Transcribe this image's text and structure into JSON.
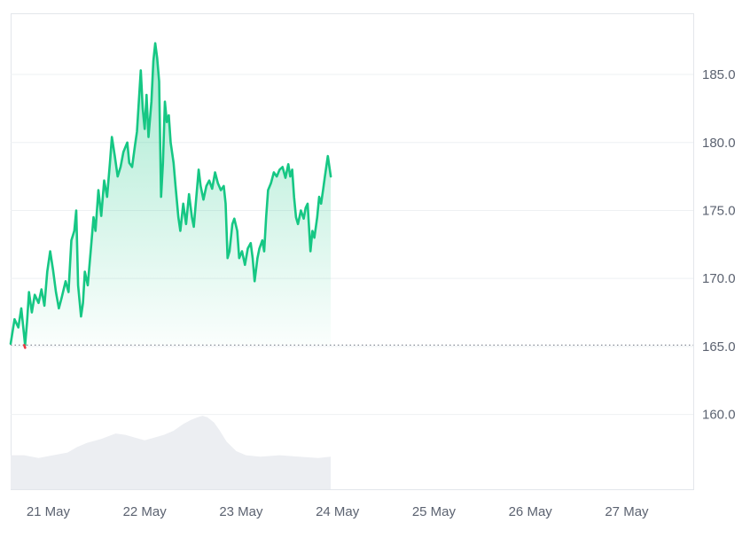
{
  "chart_data": {
    "type": "area",
    "baseline": 165.1,
    "ylim": [
      154.5,
      189.5
    ],
    "y_ticks": [
      {
        "value": 160,
        "label": "160.0"
      },
      {
        "value": 165,
        "label": "165.0"
      },
      {
        "value": 170,
        "label": "170.0"
      },
      {
        "value": 175,
        "label": "175.0"
      },
      {
        "value": 180,
        "label": "180.0"
      },
      {
        "value": 185,
        "label": "185.0"
      }
    ],
    "x_ticks": [
      {
        "day": 1,
        "label": "21 May"
      },
      {
        "day": 2,
        "label": "22 May"
      },
      {
        "day": 3,
        "label": "23 May"
      },
      {
        "day": 4,
        "label": "24 May"
      },
      {
        "day": 5,
        "label": "25 May"
      },
      {
        "day": 6,
        "label": "26 May"
      },
      {
        "day": 7,
        "label": "27 May"
      }
    ],
    "xlim": [
      0.61,
      7.69
    ],
    "grid": true,
    "colors": {
      "line": "#16c784",
      "below_baseline": "#ea3943",
      "volume": "#eceef2",
      "grid": "#eef0f3"
    },
    "price": [
      [
        0.61,
        165.2
      ],
      [
        0.65,
        167.0
      ],
      [
        0.69,
        166.4
      ],
      [
        0.72,
        167.8
      ],
      [
        0.74,
        166.5
      ],
      [
        0.76,
        165.1
      ],
      [
        0.78,
        166.8
      ],
      [
        0.8,
        169.0
      ],
      [
        0.83,
        167.5
      ],
      [
        0.86,
        168.8
      ],
      [
        0.9,
        168.2
      ],
      [
        0.93,
        169.2
      ],
      [
        0.96,
        168.0
      ],
      [
        0.99,
        170.5
      ],
      [
        1.02,
        172.0
      ],
      [
        1.05,
        170.6
      ],
      [
        1.08,
        169.0
      ],
      [
        1.11,
        167.8
      ],
      [
        1.14,
        168.6
      ],
      [
        1.18,
        169.8
      ],
      [
        1.21,
        169.0
      ],
      [
        1.24,
        172.8
      ],
      [
        1.27,
        173.5
      ],
      [
        1.29,
        175.0
      ],
      [
        1.31,
        169.5
      ],
      [
        1.34,
        167.2
      ],
      [
        1.36,
        168.2
      ],
      [
        1.38,
        170.5
      ],
      [
        1.41,
        169.5
      ],
      [
        1.44,
        172.0
      ],
      [
        1.47,
        174.5
      ],
      [
        1.49,
        173.5
      ],
      [
        1.52,
        176.5
      ],
      [
        1.55,
        174.6
      ],
      [
        1.58,
        177.2
      ],
      [
        1.61,
        176.0
      ],
      [
        1.64,
        178.5
      ],
      [
        1.66,
        180.4
      ],
      [
        1.69,
        179.0
      ],
      [
        1.72,
        177.5
      ],
      [
        1.75,
        178.2
      ],
      [
        1.78,
        179.3
      ],
      [
        1.82,
        180.0
      ],
      [
        1.84,
        178.5
      ],
      [
        1.87,
        178.2
      ],
      [
        1.9,
        179.8
      ],
      [
        1.92,
        180.8
      ],
      [
        1.94,
        183.0
      ],
      [
        1.96,
        185.3
      ],
      [
        1.98,
        182.5
      ],
      [
        2.0,
        181.0
      ],
      [
        2.02,
        183.5
      ],
      [
        2.04,
        180.4
      ],
      [
        2.07,
        183.0
      ],
      [
        2.09,
        186.0
      ],
      [
        2.11,
        187.3
      ],
      [
        2.13,
        186.2
      ],
      [
        2.15,
        184.5
      ],
      [
        2.17,
        176.0
      ],
      [
        2.19,
        178.5
      ],
      [
        2.21,
        183.0
      ],
      [
        2.23,
        181.5
      ],
      [
        2.25,
        182.0
      ],
      [
        2.27,
        180.0
      ],
      [
        2.3,
        178.5
      ],
      [
        2.32,
        176.8
      ],
      [
        2.35,
        174.5
      ],
      [
        2.37,
        173.5
      ],
      [
        2.4,
        175.5
      ],
      [
        2.43,
        174.0
      ],
      [
        2.46,
        176.2
      ],
      [
        2.49,
        174.5
      ],
      [
        2.51,
        173.8
      ],
      [
        2.53,
        175.5
      ],
      [
        2.56,
        178.0
      ],
      [
        2.58,
        176.8
      ],
      [
        2.61,
        175.8
      ],
      [
        2.64,
        176.8
      ],
      [
        2.67,
        177.2
      ],
      [
        2.7,
        176.6
      ],
      [
        2.73,
        177.8
      ],
      [
        2.76,
        177.0
      ],
      [
        2.79,
        176.5
      ],
      [
        2.82,
        176.8
      ],
      [
        2.84,
        175.5
      ],
      [
        2.86,
        171.5
      ],
      [
        2.88,
        172.0
      ],
      [
        2.91,
        174.0
      ],
      [
        2.93,
        174.4
      ],
      [
        2.96,
        173.5
      ],
      [
        2.98,
        171.5
      ],
      [
        3.01,
        172.0
      ],
      [
        3.04,
        171.0
      ],
      [
        3.07,
        172.2
      ],
      [
        3.1,
        172.6
      ],
      [
        3.12,
        171.5
      ],
      [
        3.14,
        169.8
      ],
      [
        3.17,
        171.5
      ],
      [
        3.19,
        172.2
      ],
      [
        3.22,
        172.8
      ],
      [
        3.24,
        172.0
      ],
      [
        3.26,
        174.5
      ],
      [
        3.28,
        176.5
      ],
      [
        3.31,
        177.0
      ],
      [
        3.34,
        177.8
      ],
      [
        3.37,
        177.5
      ],
      [
        3.4,
        178.0
      ],
      [
        3.43,
        178.2
      ],
      [
        3.46,
        177.4
      ],
      [
        3.49,
        178.4
      ],
      [
        3.51,
        177.5
      ],
      [
        3.53,
        178.0
      ],
      [
        3.55,
        176.0
      ],
      [
        3.57,
        174.5
      ],
      [
        3.59,
        174.0
      ],
      [
        3.62,
        175.0
      ],
      [
        3.65,
        174.4
      ],
      [
        3.67,
        175.2
      ],
      [
        3.69,
        175.5
      ],
      [
        3.71,
        173.2
      ],
      [
        3.72,
        172.0
      ],
      [
        3.74,
        173.5
      ],
      [
        3.76,
        173.0
      ],
      [
        3.79,
        174.5
      ],
      [
        3.81,
        176.0
      ],
      [
        3.83,
        175.5
      ],
      [
        3.85,
        176.5
      ],
      [
        3.87,
        177.5
      ],
      [
        3.9,
        179.0
      ],
      [
        3.93,
        177.5
      ]
    ],
    "volume": [
      [
        0.61,
        157.0
      ],
      [
        0.75,
        157.0
      ],
      [
        0.9,
        156.8
      ],
      [
        1.05,
        157.0
      ],
      [
        1.2,
        157.2
      ],
      [
        1.3,
        157.6
      ],
      [
        1.4,
        157.9
      ],
      [
        1.55,
        158.2
      ],
      [
        1.7,
        158.6
      ],
      [
        1.8,
        158.5
      ],
      [
        1.9,
        158.3
      ],
      [
        2.0,
        158.1
      ],
      [
        2.1,
        158.3
      ],
      [
        2.2,
        158.5
      ],
      [
        2.3,
        158.8
      ],
      [
        2.4,
        159.3
      ],
      [
        2.48,
        159.6
      ],
      [
        2.55,
        159.8
      ],
      [
        2.6,
        159.9
      ],
      [
        2.65,
        159.8
      ],
      [
        2.72,
        159.4
      ],
      [
        2.78,
        158.8
      ],
      [
        2.85,
        158.0
      ],
      [
        2.95,
        157.3
      ],
      [
        3.05,
        157.0
      ],
      [
        3.2,
        156.9
      ],
      [
        3.4,
        157.0
      ],
      [
        3.6,
        156.9
      ],
      [
        3.8,
        156.8
      ],
      [
        3.93,
        156.9
      ]
    ]
  }
}
